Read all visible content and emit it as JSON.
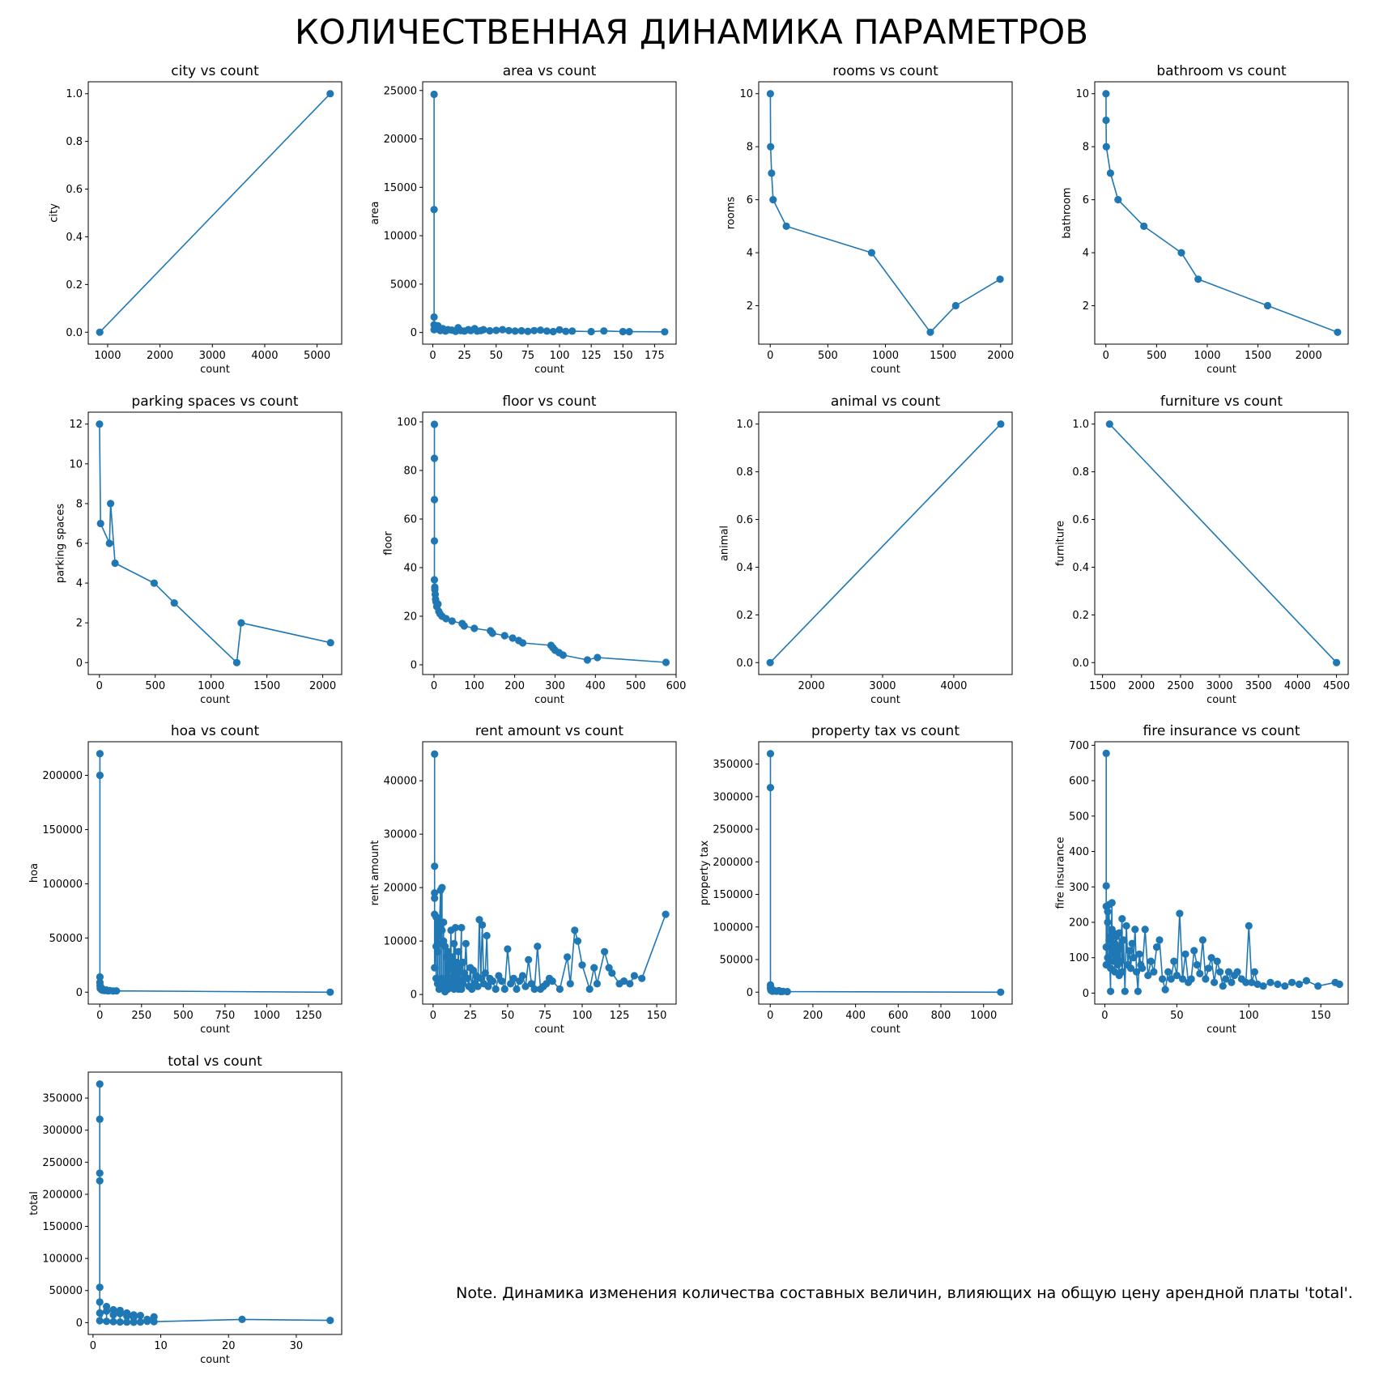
{
  "figure": {
    "suptitle": "КОЛИЧЕСТВЕННАЯ ДИНАМИКА ПАРАМЕТРОВ",
    "note": "Note. Динамика изменения количества составных величин, влияющих на общую цену арендной платы 'total'.",
    "line_color": "#1f77b4"
  },
  "chart_data": [
    {
      "type": "line",
      "title": "city vs count",
      "xlabel": "count",
      "ylabel": "city",
      "xlim": [
        630,
        5470
      ],
      "ylim": [
        -0.05,
        1.05
      ],
      "xticks": [
        1000,
        2000,
        3000,
        4000,
        5000
      ],
      "yticks": [
        0.0,
        0.2,
        0.4,
        0.6,
        0.8,
        1.0
      ],
      "x": [
        850,
        5250
      ],
      "y": [
        0,
        1
      ]
    },
    {
      "type": "line",
      "title": "area vs count",
      "xlabel": "count",
      "ylabel": "area",
      "xlim": [
        -8,
        192
      ],
      "ylim": [
        -1200,
        25900
      ],
      "xticks": [
        0,
        25,
        50,
        75,
        100,
        125,
        150,
        175
      ],
      "yticks": [
        0,
        5000,
        10000,
        15000,
        20000,
        25000
      ],
      "x": [
        1,
        1,
        1,
        1,
        1,
        2,
        3,
        4,
        5,
        6,
        8,
        10,
        12,
        15,
        18,
        20,
        22,
        25,
        28,
        30,
        33,
        35,
        38,
        40,
        45,
        50,
        55,
        60,
        65,
        70,
        75,
        80,
        85,
        90,
        95,
        100,
        105,
        110,
        125,
        135,
        150,
        155,
        183
      ],
      "y": [
        24600,
        12700,
        1600,
        800,
        300,
        600,
        500,
        700,
        300,
        200,
        400,
        150,
        300,
        250,
        120,
        500,
        200,
        150,
        300,
        200,
        400,
        150,
        200,
        300,
        180,
        220,
        300,
        200,
        150,
        180,
        120,
        200,
        250,
        150,
        100,
        280,
        120,
        150,
        100,
        160,
        100,
        90,
        70
      ]
    },
    {
      "type": "line",
      "title": "rooms vs count",
      "xlabel": "count",
      "ylabel": "rooms",
      "xlim": [
        -100,
        2100
      ],
      "ylim": [
        0.55,
        10.45
      ],
      "xticks": [
        0,
        500,
        1000,
        1500,
        2000
      ],
      "yticks": [
        2,
        4,
        6,
        8,
        10
      ],
      "x": [
        1,
        3,
        12,
        25,
        140,
        880,
        1390,
        1610,
        1995
      ],
      "y": [
        10,
        8,
        7,
        6,
        5,
        4,
        1,
        2,
        3
      ]
    },
    {
      "type": "line",
      "title": "bathroom vs count",
      "xlabel": "count",
      "ylabel": "bathroom",
      "xlim": [
        -110,
        2390
      ],
      "ylim": [
        0.55,
        10.45
      ],
      "xticks": [
        0,
        500,
        1000,
        1500,
        2000
      ],
      "yticks": [
        2,
        4,
        6,
        8,
        10
      ],
      "x": [
        1,
        2,
        4,
        45,
        120,
        375,
        745,
        910,
        1595,
        2285
      ],
      "y": [
        10,
        9,
        8,
        7,
        6,
        5,
        4,
        3,
        2,
        1
      ]
    },
    {
      "type": "line",
      "title": "parking spaces vs count",
      "xlabel": "count",
      "ylabel": "parking spaces",
      "xlim": [
        -100,
        2170
      ],
      "ylim": [
        -0.6,
        12.6
      ],
      "xticks": [
        0,
        500,
        1000,
        1500,
        2000
      ],
      "yticks": [
        0,
        2,
        4,
        6,
        8,
        10,
        12
      ],
      "x": [
        1,
        10,
        90,
        100,
        140,
        490,
        670,
        1230,
        1270,
        2070
      ],
      "y": [
        12,
        7,
        6,
        8,
        5,
        4,
        3,
        0,
        2,
        1
      ]
    },
    {
      "type": "line",
      "title": "floor vs count",
      "xlabel": "count",
      "ylabel": "floor",
      "xlim": [
        -28,
        600
      ],
      "ylim": [
        -4,
        104
      ],
      "xticks": [
        0,
        100,
        200,
        300,
        400,
        500,
        600
      ],
      "yticks": [
        0,
        20,
        40,
        60,
        80,
        100
      ],
      "x": [
        1,
        1,
        1,
        1,
        1,
        2,
        2,
        3,
        4,
        5,
        7,
        10,
        12,
        15,
        20,
        30,
        45,
        70,
        75,
        100,
        140,
        145,
        175,
        195,
        210,
        220,
        290,
        295,
        300,
        310,
        320,
        380,
        405,
        575
      ],
      "y": [
        99,
        85,
        68,
        51,
        35,
        32,
        31,
        29,
        27,
        26,
        24,
        25,
        22,
        21,
        20,
        19,
        18,
        17,
        16,
        15,
        14,
        13,
        12,
        11,
        10,
        9,
        8,
        7,
        6,
        5,
        4,
        2,
        3,
        1
      ]
    },
    {
      "type": "line",
      "title": "animal vs count",
      "xlabel": "count",
      "ylabel": "animal",
      "xlim": [
        1260,
        4820
      ],
      "ylim": [
        -0.05,
        1.05
      ],
      "xticks": [
        2000,
        3000,
        4000
      ],
      "yticks": [
        0.0,
        0.2,
        0.4,
        0.6,
        0.8,
        1.0
      ],
      "x": [
        1420,
        4660
      ],
      "y": [
        0,
        1
      ]
    },
    {
      "type": "line",
      "title": "furniture vs count",
      "xlabel": "count",
      "ylabel": "furniture",
      "xlim": [
        1400,
        4650
      ],
      "ylim": [
        -0.05,
        1.05
      ],
      "xticks": [
        1500,
        2000,
        2500,
        3000,
        3500,
        4000,
        4500
      ],
      "yticks": [
        0.0,
        0.2,
        0.4,
        0.6,
        0.8,
        1.0
      ],
      "x": [
        1590,
        4500
      ],
      "y": [
        1,
        0
      ]
    },
    {
      "type": "line",
      "title": "hoa vs count",
      "xlabel": "count",
      "ylabel": "hoa",
      "xlim": [
        -69,
        1449
      ],
      "ylim": [
        -11000,
        231000
      ],
      "xticks": [
        0,
        250,
        500,
        750,
        1000,
        1250
      ],
      "yticks": [
        0,
        50000,
        100000,
        150000,
        200000
      ],
      "x": [
        1,
        1,
        1,
        1,
        2,
        3,
        5,
        8,
        10,
        15,
        20,
        30,
        40,
        50,
        60,
        80,
        100,
        1380
      ],
      "y": [
        220000,
        200000,
        14000,
        9000,
        6000,
        3500,
        5000,
        2500,
        3000,
        1800,
        2500,
        1500,
        2000,
        1200,
        1500,
        1000,
        1200,
        0
      ]
    },
    {
      "type": "line",
      "title": "rent amount vs count",
      "xlabel": "count",
      "ylabel": "rent amount",
      "xlim": [
        -7,
        163
      ],
      "ylim": [
        -1800,
        47300
      ],
      "xticks": [
        0,
        25,
        50,
        75,
        100,
        125,
        150
      ],
      "yticks": [
        0,
        10000,
        20000,
        30000,
        40000
      ],
      "x": [
        1,
        1,
        1,
        1,
        1,
        1,
        2,
        2,
        2,
        3,
        3,
        3,
        4,
        4,
        4,
        5,
        5,
        5,
        6,
        6,
        6,
        7,
        7,
        7,
        8,
        8,
        9,
        9,
        10,
        10,
        11,
        11,
        12,
        12,
        13,
        13,
        14,
        14,
        15,
        15,
        16,
        16,
        17,
        17,
        18,
        18,
        19,
        19,
        20,
        20,
        21,
        22,
        23,
        24,
        25,
        26,
        27,
        28,
        29,
        30,
        31,
        32,
        33,
        34,
        35,
        36,
        37,
        38,
        40,
        42,
        44,
        46,
        48,
        50,
        52,
        54,
        56,
        58,
        60,
        62,
        64,
        66,
        68,
        70,
        72,
        74,
        76,
        78,
        80,
        85,
        90,
        92,
        95,
        97,
        100,
        105,
        108,
        110,
        115,
        118,
        120,
        125,
        128,
        132,
        135,
        140,
        156
      ],
      "y": [
        45000,
        24000,
        19000,
        18000,
        15000,
        5000,
        14500,
        3000,
        9000,
        14000,
        2000,
        8000,
        13000,
        1000,
        11000,
        19500,
        2500,
        9500,
        20000,
        3000,
        12000,
        13500,
        1500,
        10000,
        9000,
        500,
        7000,
        2000,
        8000,
        1000,
        6000,
        3000,
        12000,
        1500,
        7000,
        2500,
        9500,
        1000,
        12500,
        3000,
        6000,
        2000,
        8000,
        1000,
        5000,
        2500,
        12500,
        1000,
        6000,
        2000,
        4000,
        9500,
        3000,
        1500,
        5000,
        1000,
        4500,
        2000,
        3500,
        1500,
        14000,
        3000,
        13000,
        2000,
        4000,
        11000,
        1500,
        3000,
        2500,
        1000,
        3500,
        2500,
        1000,
        8500,
        2000,
        3000,
        1000,
        2500,
        3500,
        1500,
        6500,
        2000,
        1000,
        9000,
        1000,
        1500,
        2000,
        3000,
        2500,
        1000,
        7000,
        2000,
        12000,
        10000,
        5500,
        1000,
        5000,
        2000,
        8000,
        5000,
        4000,
        2000,
        2500,
        2000,
        3500,
        3000,
        15000
      ]
    },
    {
      "type": "line",
      "title": "property tax vs count",
      "xlabel": "count",
      "ylabel": "property tax",
      "xlim": [
        -54,
        1134
      ],
      "ylim": [
        -18300,
        384300
      ],
      "xticks": [
        0,
        200,
        400,
        600,
        800,
        1000
      ],
      "yticks": [
        0,
        50000,
        100000,
        150000,
        200000,
        250000,
        300000,
        350000
      ],
      "x": [
        1,
        1,
        1,
        1,
        2,
        3,
        4,
        5,
        8,
        10,
        15,
        20,
        30,
        40,
        50,
        60,
        80,
        1080
      ],
      "y": [
        366000,
        314000,
        11000,
        6000,
        8000,
        3000,
        5000,
        2500,
        4000,
        1500,
        3000,
        2000,
        1500,
        2500,
        1000,
        1200,
        800,
        0
      ]
    },
    {
      "type": "line",
      "title": "fire insurance vs count",
      "xlabel": "count",
      "ylabel": "fire insurance",
      "xlim": [
        -7,
        169
      ],
      "ylim": [
        -31,
        710
      ],
      "xticks": [
        0,
        50,
        100,
        150
      ],
      "yticks": [
        0,
        100,
        200,
        300,
        400,
        500,
        600,
        700
      ],
      "x": [
        1,
        1,
        1,
        1,
        1,
        2,
        2,
        2,
        3,
        3,
        3,
        4,
        4,
        4,
        5,
        5,
        5,
        6,
        6,
        7,
        7,
        8,
        8,
        9,
        9,
        10,
        10,
        11,
        11,
        12,
        12,
        13,
        14,
        15,
        16,
        17,
        18,
        19,
        20,
        21,
        22,
        23,
        24,
        25,
        26,
        28,
        30,
        32,
        34,
        36,
        38,
        40,
        42,
        44,
        46,
        48,
        50,
        52,
        54,
        56,
        58,
        60,
        62,
        64,
        66,
        68,
        70,
        72,
        74,
        76,
        78,
        80,
        82,
        84,
        86,
        88,
        90,
        92,
        95,
        98,
        100,
        102,
        104,
        106,
        110,
        115,
        120,
        125,
        130,
        135,
        140,
        148,
        160,
        163
      ],
      "y": [
        677,
        303,
        245,
        130,
        80,
        230,
        100,
        200,
        250,
        90,
        150,
        5,
        160,
        70,
        255,
        110,
        180,
        90,
        170,
        60,
        140,
        100,
        160,
        80,
        120,
        50,
        170,
        90,
        130,
        210,
        60,
        150,
        5,
        190,
        80,
        120,
        70,
        140,
        100,
        180,
        60,
        5,
        110,
        80,
        70,
        180,
        50,
        90,
        60,
        130,
        150,
        40,
        10,
        60,
        40,
        90,
        50,
        225,
        40,
        110,
        30,
        40,
        120,
        80,
        55,
        150,
        40,
        70,
        100,
        30,
        90,
        60,
        20,
        40,
        60,
        30,
        50,
        60,
        40,
        30,
        190,
        30,
        60,
        25,
        20,
        30,
        25,
        20,
        30,
        25,
        35,
        20,
        30,
        25
      ]
    },
    {
      "type": "line",
      "title": "total vs count",
      "xlabel": "count",
      "ylabel": "total",
      "xlim": [
        -0.7,
        36.7
      ],
      "ylim": [
        -18500,
        390500
      ],
      "xticks": [
        0,
        10,
        20,
        30
      ],
      "yticks": [
        0,
        50000,
        100000,
        150000,
        200000,
        250000,
        300000,
        350000
      ],
      "x": [
        1,
        1,
        1,
        1,
        1,
        1,
        1,
        1,
        2,
        2,
        2,
        3,
        3,
        3,
        4,
        4,
        4,
        5,
        5,
        5,
        6,
        6,
        6,
        7,
        7,
        8,
        8,
        9,
        9,
        22,
        35
      ],
      "y": [
        372000,
        317000,
        233000,
        221000,
        55000,
        32000,
        15000,
        3000,
        25000,
        2000,
        18000,
        20000,
        1500,
        12000,
        19000,
        1000,
        14000,
        15000,
        800,
        10000,
        12000,
        600,
        8000,
        11000,
        1000,
        5000,
        2000,
        9000,
        1500,
        5000,
        3500
      ]
    }
  ]
}
